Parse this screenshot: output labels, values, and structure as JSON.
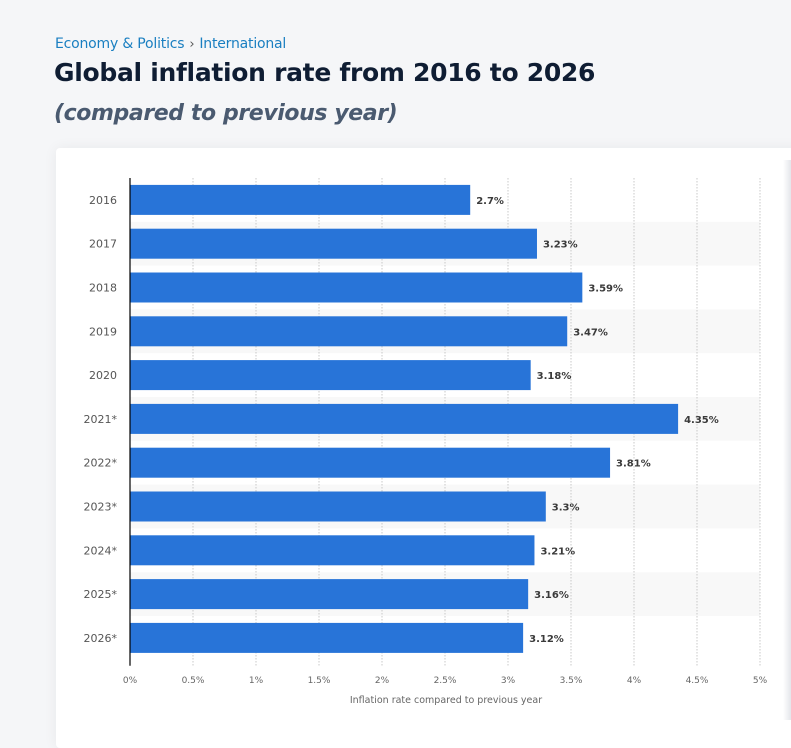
{
  "breadcrumb": {
    "items": [
      "Economy & Politics",
      "International"
    ],
    "separator": "›"
  },
  "header": {
    "title": "Global inflation rate from 2016 to 2026",
    "subtitle": "(compared to previous year)"
  },
  "colors": {
    "bar": "#2874d8",
    "band": "#f8f8f8",
    "grid": "#c8c8c8",
    "axis": "#000000"
  },
  "chart_data": {
    "type": "bar",
    "orientation": "horizontal",
    "title": "Global inflation rate from 2016 to 2026",
    "subtitle": "(compared to previous year)",
    "xlabel": "Inflation rate compared to previous year",
    "ylabel": "",
    "categories": [
      "2016",
      "2017",
      "2018",
      "2019",
      "2020",
      "2021*",
      "2022*",
      "2023*",
      "2024*",
      "2025*",
      "2026*"
    ],
    "values": [
      2.7,
      3.23,
      3.59,
      3.47,
      3.18,
      4.35,
      3.81,
      3.3,
      3.21,
      3.16,
      3.12
    ],
    "value_labels": [
      "2.7%",
      "3.23%",
      "3.59%",
      "3.47%",
      "3.18%",
      "4.35%",
      "3.81%",
      "3.3%",
      "3.21%",
      "3.16%",
      "3.12%"
    ],
    "xlim": [
      0,
      5
    ],
    "xticks": [
      0,
      0.5,
      1,
      1.5,
      2,
      2.5,
      3,
      3.5,
      4,
      4.5,
      5
    ],
    "xtick_labels": [
      "0%",
      "0.5%",
      "1%",
      "1.5%",
      "2%",
      "2.5%",
      "3%",
      "3.5%",
      "4%",
      "4.5%",
      "5%"
    ],
    "grid": true,
    "grid_style": "dotted vertical",
    "legend": "none",
    "unit": "%"
  }
}
